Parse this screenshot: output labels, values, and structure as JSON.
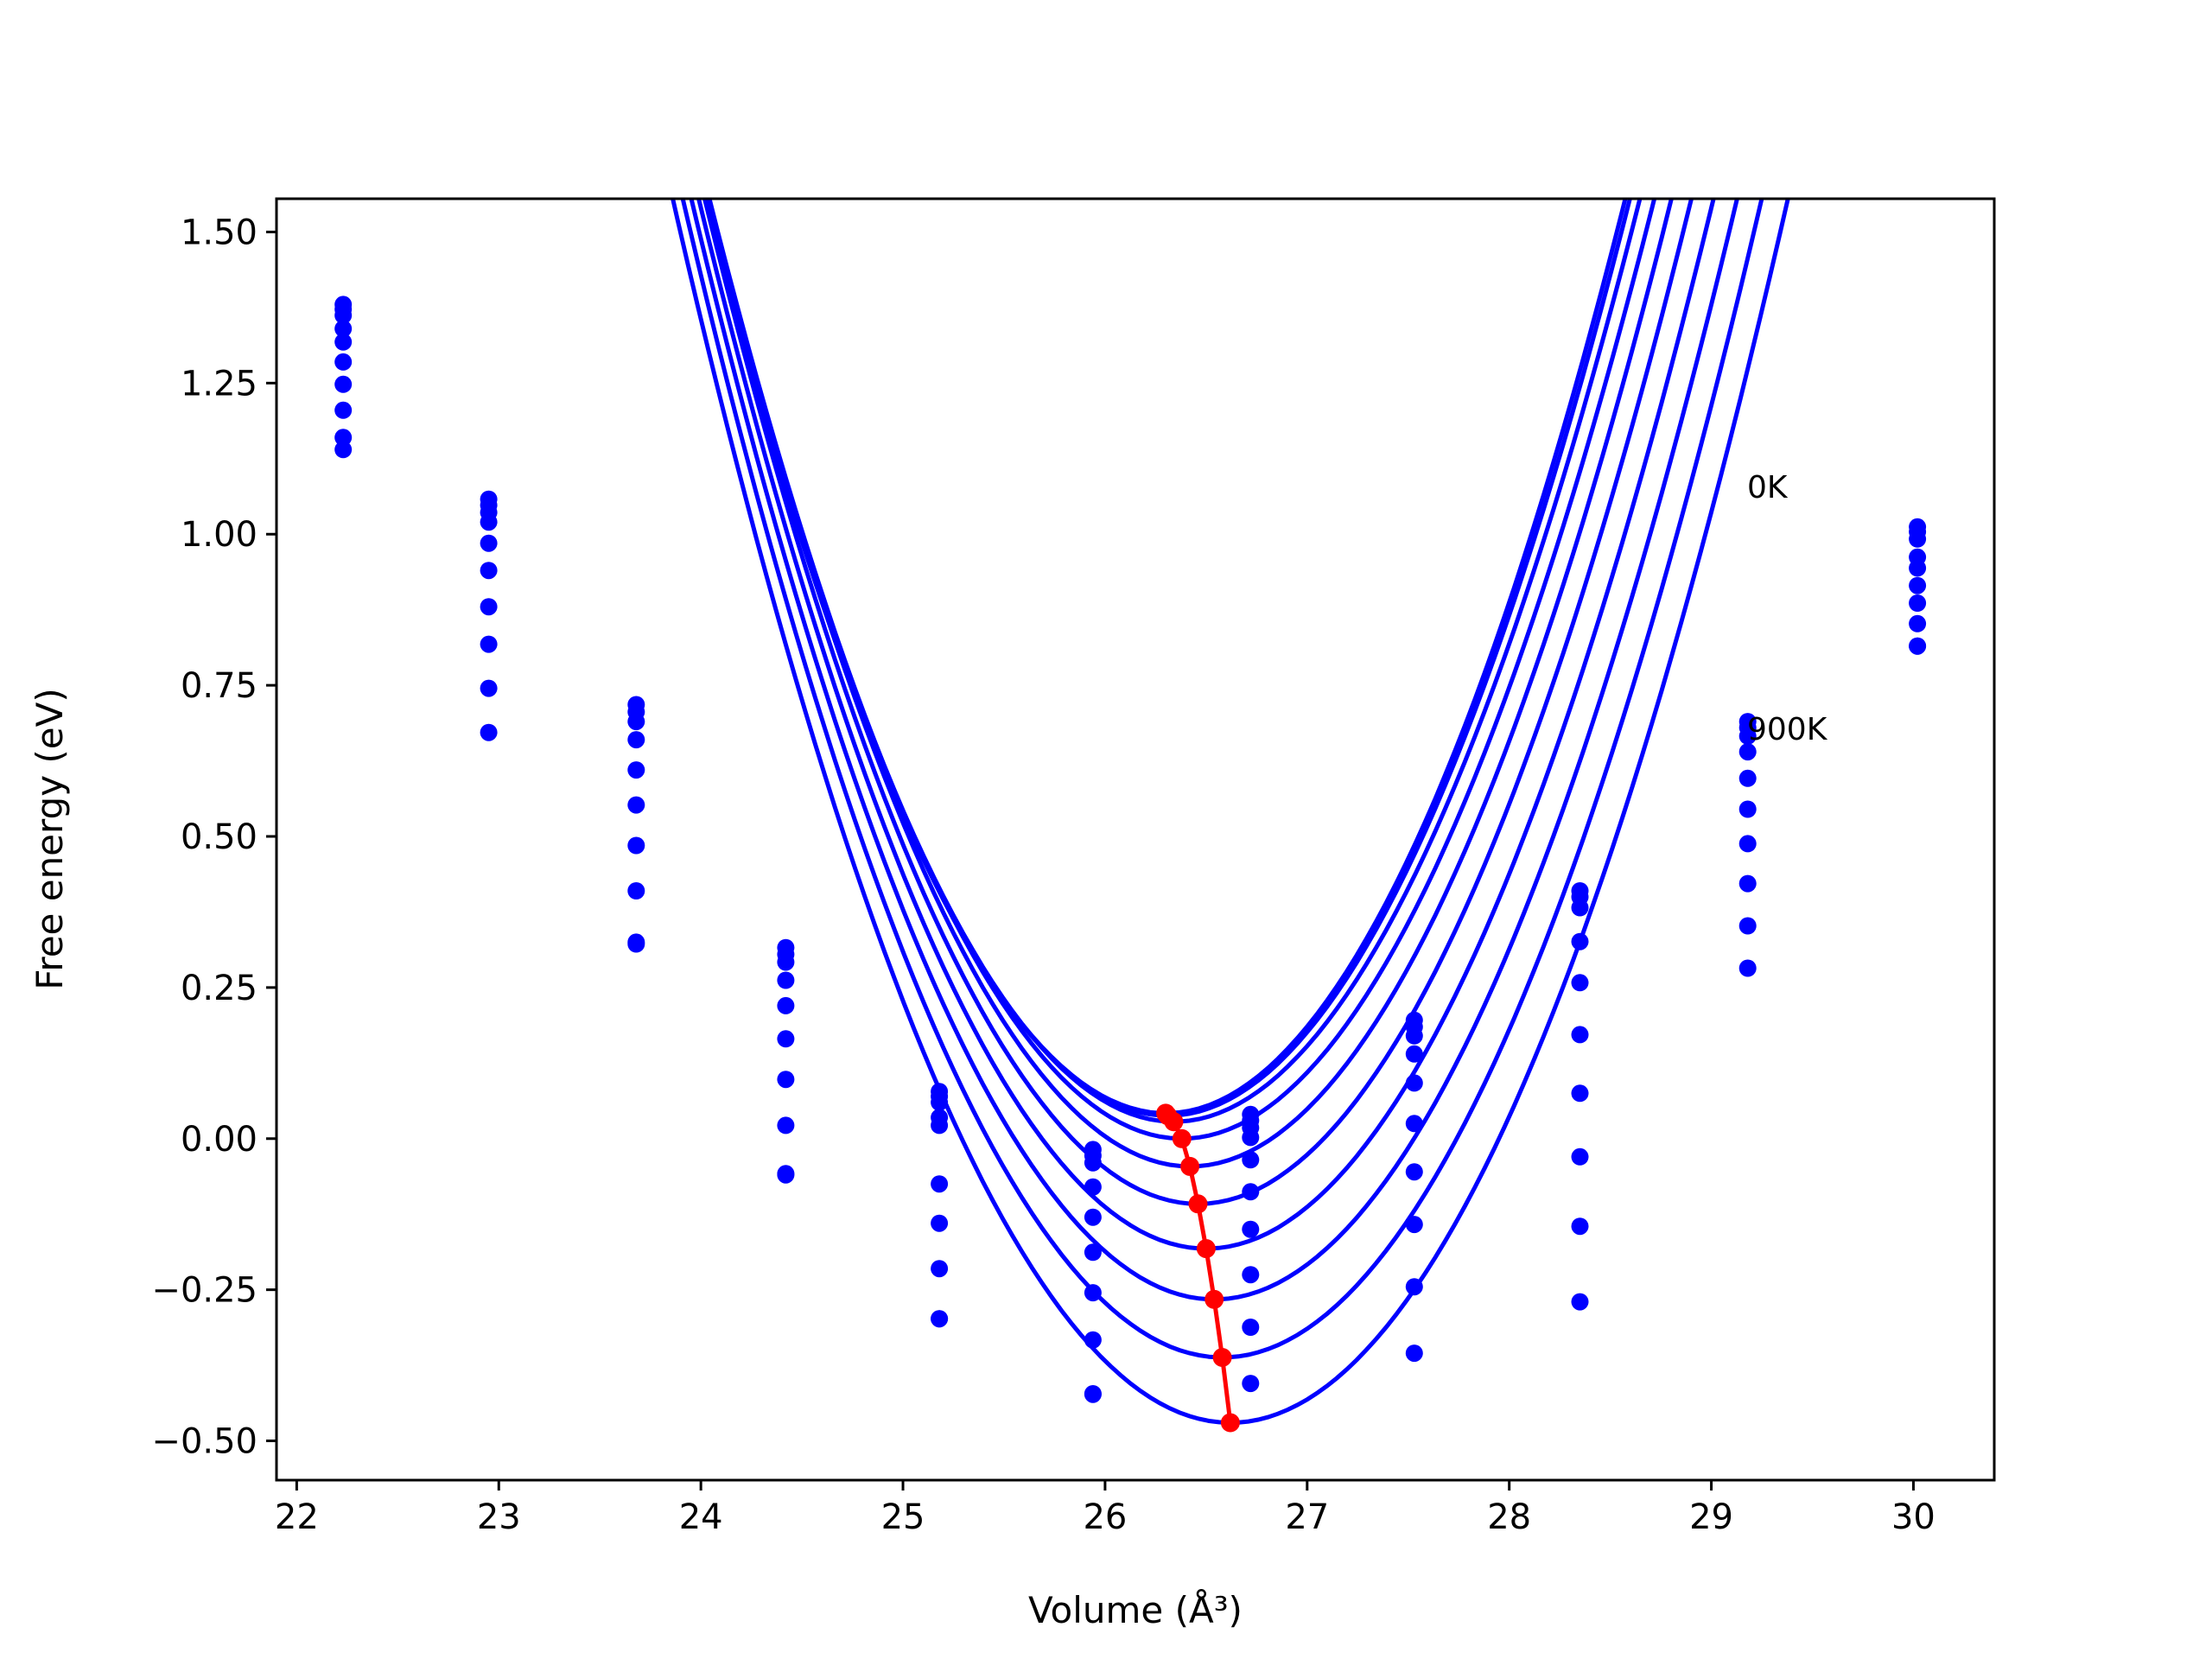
{
  "chart_data": {
    "type": "line",
    "xlabel": "Volume (Å³)",
    "ylabel": "Free energy (eV)",
    "xlim": [
      21.9,
      30.4
    ],
    "ylim": [
      -0.565,
      1.555
    ],
    "x_ticks": [
      22,
      23,
      24,
      25,
      26,
      27,
      28,
      29,
      30
    ],
    "x_tick_labels": [
      "22",
      "23",
      "24",
      "25",
      "26",
      "27",
      "28",
      "29",
      "30"
    ],
    "y_ticks": [
      -0.5,
      -0.25,
      0.0,
      0.25,
      0.5,
      0.75,
      1.0,
      1.25,
      1.5
    ],
    "y_tick_labels": [
      "−0.50",
      "−0.25",
      "0.00",
      "0.25",
      "0.50",
      "0.75",
      "1.00",
      "1.25",
      "1.50"
    ],
    "grid": false,
    "annotations": [
      "0K",
      "900K"
    ],
    "curve_color": "#0000ff",
    "minima_color": "#ff0000",
    "volumes": [
      22.23,
      22.95,
      23.68,
      24.42,
      25.18,
      25.94,
      26.72,
      27.53,
      28.35,
      29.18,
      30.02
    ],
    "series": [
      {
        "min_volume": 26.3,
        "min_energy": 0.042,
        "curvature": 0.2925,
        "points": [
          1.38,
          1.058,
          0.718,
          0.316,
          0.078,
          -0.018,
          0.04,
          0.196,
          0.41,
          0.69,
          1.012
        ]
      },
      {
        "min_volume": 26.31,
        "min_energy": 0.038,
        "curvature": 0.29,
        "points": [
          1.372,
          1.048,
          0.706,
          0.305,
          0.07,
          -0.028,
          0.03,
          0.185,
          0.4,
          0.68,
          1.004
        ]
      },
      {
        "min_volume": 26.34,
        "min_energy": 0.028,
        "curvature": 0.287,
        "points": [
          1.362,
          1.036,
          0.69,
          0.292,
          0.06,
          -0.04,
          0.018,
          0.17,
          0.382,
          0.666,
          0.992
        ]
      },
      {
        "min_volume": 26.38,
        "min_energy": 0.0,
        "curvature": 0.2845,
        "points": [
          1.34,
          1.02,
          0.66,
          0.262,
          0.035,
          -0.08,
          0.002,
          0.14,
          0.326,
          0.64,
          0.962
        ]
      },
      {
        "min_volume": 26.42,
        "min_energy": -0.046,
        "curvature": 0.282,
        "points": [
          1.318,
          0.985,
          0.61,
          0.22,
          0.022,
          -0.13,
          -0.035,
          0.092,
          0.258,
          0.596,
          0.944
        ]
      },
      {
        "min_volume": 26.46,
        "min_energy": -0.108,
        "curvature": 0.279,
        "points": [
          1.285,
          0.94,
          0.552,
          0.165,
          -0.075,
          -0.188,
          -0.088,
          0.025,
          0.172,
          0.545,
          0.915
        ]
      },
      {
        "min_volume": 26.5,
        "min_energy": -0.182,
        "curvature": 0.2755,
        "points": [
          1.248,
          0.88,
          0.485,
          0.098,
          -0.14,
          -0.255,
          -0.15,
          -0.055,
          0.075,
          0.488,
          0.886
        ]
      },
      {
        "min_volume": 26.54,
        "min_energy": -0.266,
        "curvature": 0.272,
        "points": [
          1.205,
          0.818,
          0.41,
          0.022,
          -0.215,
          -0.333,
          -0.225,
          -0.142,
          -0.03,
          0.422,
          0.852
        ]
      },
      {
        "min_volume": 26.58,
        "min_energy": -0.362,
        "curvature": 0.269,
        "points": [
          1.16,
          0.745,
          0.322,
          -0.058,
          -0.298,
          -0.422,
          -0.312,
          -0.245,
          -0.145,
          0.352,
          0.815
        ]
      },
      {
        "min_volume": 26.62,
        "min_energy": -0.47,
        "curvature": 0.266,
        "points": [
          1.14,
          0.672,
          0.325,
          -0.06,
          -0.298,
          -0.423,
          -0.405,
          -0.355,
          -0.27,
          0.282,
          0.815
        ]
      }
    ],
    "minima_line": {
      "x": [
        26.3,
        26.31,
        26.34,
        26.38,
        26.42,
        26.46,
        26.5,
        26.54,
        26.58,
        26.62
      ],
      "y": [
        0.042,
        0.038,
        0.028,
        0.0,
        -0.046,
        -0.108,
        -0.182,
        -0.266,
        -0.362,
        -0.47
      ]
    }
  }
}
